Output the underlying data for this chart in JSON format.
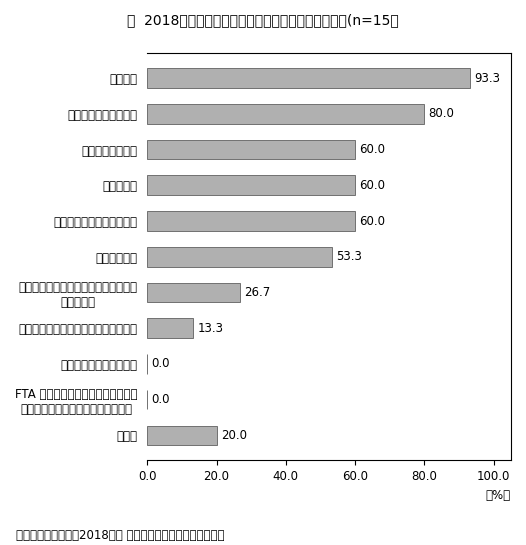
{
  "title": "図  2018年の営業利益見込み悪化理由：アルゼンチン(n=15）",
  "categories": [
    "為替変動",
    "現地市場での売上減少",
    "調達コストの上昇",
    "金利の上昇",
    "販売価格への不十分な転嫁",
    "人件費の上昇",
    "その他支出（管理費、光熱費、燃料費\n等）の増加",
    "現地政府・他国政府の政策による影響",
    "輸出低迷による売上減少",
    "FTA 発効、関税見直しなど通商ルー\nルの変更（第三国のルールを含む）",
    "その他"
  ],
  "values": [
    93.3,
    80.0,
    60.0,
    60.0,
    60.0,
    53.3,
    26.7,
    13.3,
    0.0,
    0.0,
    20.0
  ],
  "bar_color": "#b0b0b0",
  "bar_edge_color": "#707070",
  "xlim_max": 105,
  "xticks": [
    0.0,
    20.0,
    40.0,
    60.0,
    80.0,
    100.0
  ],
  "xtick_labels": [
    "0.0",
    "20.0",
    "40.0",
    "60.0",
    "80.0",
    "100.0"
  ],
  "percent_label": "（%）",
  "footnote": "（出所）ジェトロ「2018年度 中南米進出日系企業実態調査」",
  "title_fontsize": 10,
  "label_fontsize": 8.5,
  "value_fontsize": 8.5,
  "tick_fontsize": 8.5,
  "footnote_fontsize": 8.5
}
